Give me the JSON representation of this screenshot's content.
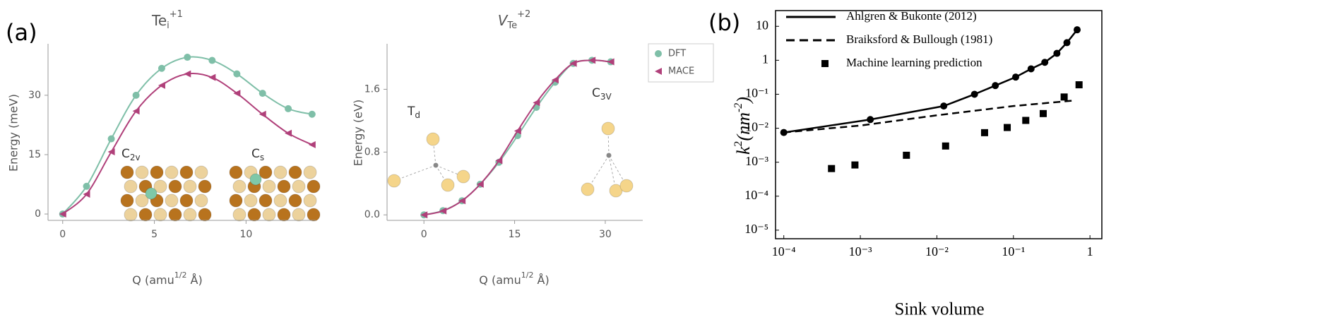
{
  "panel_labels": [
    "(a)",
    "(b)"
  ],
  "chart_data": [
    {
      "type": "line",
      "title": [
        "Te",
        "i",
        "+1"
      ],
      "xlabel": [
        "Q (amu",
        "1/2",
        " Å)"
      ],
      "ylabel": "Energy (meV)",
      "annotations": [
        [
          "C",
          "2v"
        ],
        [
          "C",
          "s"
        ]
      ],
      "x": [
        0,
        1.3,
        2.65,
        4.0,
        5.4,
        6.8,
        8.15,
        9.5,
        10.9,
        12.3,
        13.6
      ],
      "series": [
        {
          "name": "DFT",
          "color": "#7fbfa8",
          "marker": "circle",
          "values": [
            0,
            7,
            19,
            30,
            36.8,
            39.6,
            38.8,
            35.4,
            30.5,
            26.6,
            25.2
          ]
        },
        {
          "name": "MACE",
          "color": "#b0407a",
          "marker": "triangle",
          "values": [
            0,
            5,
            15.7,
            26,
            32.5,
            35.4,
            34.5,
            30.5,
            25.2,
            20.4,
            17.5
          ]
        }
      ],
      "smooth": true,
      "xlim": [
        -0.8,
        13.8
      ],
      "ylim": [
        -1.6,
        43
      ],
      "xticks": [
        0,
        5,
        10
      ],
      "yticks": [
        0,
        15,
        30
      ]
    },
    {
      "type": "line",
      "title": [
        "V",
        "Te",
        "+2"
      ],
      "xlabel": [
        "Q (amu",
        "1/2",
        " Å)"
      ],
      "ylabel": "Energy (eV)",
      "annotations": [
        [
          "T",
          "d"
        ],
        [
          "C",
          "3V"
        ]
      ],
      "x": [
        0,
        3.15,
        6.3,
        9.3,
        12.4,
        15.5,
        18.6,
        21.7,
        24.7,
        27.8,
        30.9
      ],
      "series": [
        {
          "name": "DFT",
          "color": "#7fbfa8",
          "marker": "circle",
          "values": [
            0,
            0.054,
            0.18,
            0.39,
            0.67,
            1.01,
            1.37,
            1.69,
            1.93,
            1.97,
            1.95
          ]
        },
        {
          "name": "MACE",
          "color": "#b0407a",
          "marker": "triangle",
          "values": [
            0,
            0.05,
            0.18,
            0.39,
            0.69,
            1.07,
            1.43,
            1.72,
            1.93,
            1.97,
            1.95
          ]
        }
      ],
      "smooth": true,
      "legend": "upper right",
      "xlim": [
        -6.1,
        36.2
      ],
      "ylim": [
        -0.07,
        2.18
      ],
      "xticks": [
        0,
        15,
        30
      ],
      "yticks": [
        {
          "value": 0,
          "label": "0.0"
        },
        0.8,
        1.6
      ]
    },
    {
      "type": "line",
      "xlabel": "Sink volume",
      "ylabel": [
        "k",
        "2",
        "(nm",
        "-2",
        ")"
      ],
      "series": [
        {
          "name": "Ahlgren & Bukonte (2012)",
          "color": "#000000",
          "line": "solid",
          "marker": "circle",
          "x": [
            0.0001,
            0.00135,
            0.0123,
            0.031,
            0.058,
            0.107,
            0.17,
            0.257,
            0.37,
            0.5,
            0.68
          ],
          "values": [
            0.0075,
            0.018,
            0.045,
            0.1,
            0.18,
            0.32,
            0.56,
            0.87,
            1.6,
            3.3,
            7.9
          ]
        },
        {
          "name": "Braiksford & Bullough (1981)",
          "color": "#000000",
          "line": "dashed",
          "x": [
            0.0001,
            0.001,
            0.01,
            0.1,
            0.6
          ],
          "values": [
            0.0075,
            0.012,
            0.024,
            0.045,
            0.065
          ]
        },
        {
          "name": "Machine learning prediction",
          "color": "#000000",
          "marker": "square",
          "x": [
            0.00042,
            0.00085,
            0.004,
            0.013,
            0.042,
            0.083,
            0.145,
            0.245,
            0.46,
            0.72
          ],
          "values": [
            0.00065,
            0.00083,
            0.0016,
            0.003,
            0.0074,
            0.0105,
            0.017,
            0.027,
            0.083,
            0.19
          ]
        }
      ],
      "xscale": "log",
      "yscale": "log",
      "legend": "upper left",
      "xlim": [
        7.8e-05,
        1.43
      ],
      "ylim": [
        5.6e-06,
        29
      ],
      "xticks": [
        {
          "value": 0.0001,
          "label": "10⁻⁴"
        },
        {
          "value": 0.001,
          "label": "10⁻³"
        },
        {
          "value": 0.01,
          "label": "10⁻²"
        },
        {
          "value": 0.1,
          "label": "10⁻¹"
        },
        1
      ],
      "yticks": [
        10,
        1,
        {
          "value": 0.1,
          "label": "10⁻¹"
        },
        {
          "value": 0.01,
          "label": "10⁻²"
        },
        {
          "value": 0.001,
          "label": "10⁻³"
        },
        {
          "value": 0.0001,
          "label": "10⁻⁴"
        },
        {
          "value": 1e-05,
          "label": "10⁻⁵"
        }
      ]
    }
  ]
}
